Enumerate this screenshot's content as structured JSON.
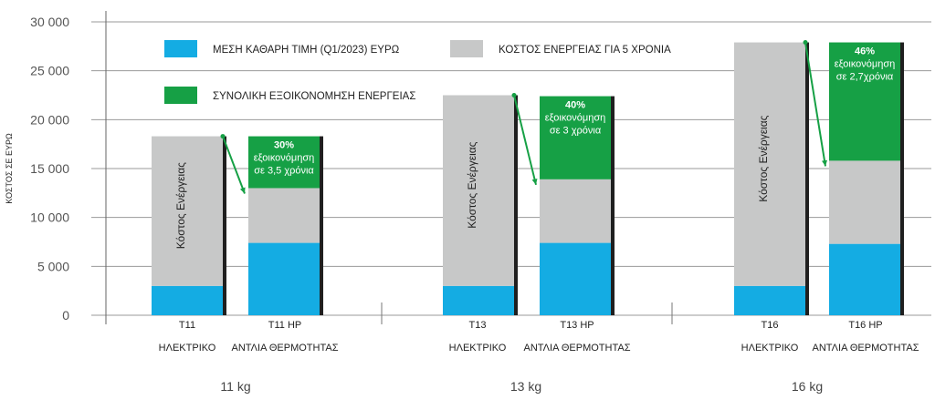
{
  "chart_data": {
    "type": "bar",
    "stacked": true,
    "ylabel": "ΚΟΣΤΟΣ ΣΕ ΕΥΡΩ",
    "ylim": [
      0,
      30000
    ],
    "yticks": [
      {
        "value": 0,
        "label": "0"
      },
      {
        "value": 5000,
        "label": "5 000"
      },
      {
        "value": 10000,
        "label": "10 000"
      },
      {
        "value": 15000,
        "label": "15 000"
      },
      {
        "value": 20000,
        "label": "20 000"
      },
      {
        "value": 25000,
        "label": "25 000"
      },
      {
        "value": 30000,
        "label": "30 000"
      }
    ],
    "grid": true,
    "legend": [
      {
        "key": "price",
        "label": "ΜΕΣΗ ΚΑΘΑΡΗ ΤΙΜΗ (Q1/2023) ΕΥΡΩ",
        "color": "#14ACE3"
      },
      {
        "key": "energy",
        "label": "ΚΟΣΤΟΣ  ΕΝΕΡΓΕΙΑΣ ΓΙΑ 5 ΧΡΟΝΙΑ",
        "color": "#C7C8C8"
      },
      {
        "key": "saving",
        "label": "ΣΥΝΟΛΙΚΗ  ΕΞΟΙΚΟΝΟΜΗΣΗ ΕΝΕΡΓΕΙΑΣ",
        "color": "#16A045"
      }
    ],
    "groups": [
      {
        "weight": "11 kg",
        "bars": [
          {
            "model": "T11",
            "type": "ΗΛΕΚΤΡΙΚΟ",
            "price": 3000,
            "energy": 15300,
            "saving": 0,
            "inner_label": "Κόστος Ενέργειας"
          },
          {
            "model": "T11  HP",
            "type": "ΑΝΤΛΙΑ ΘΕΡΜΟΤΗΤΑΣ",
            "price": 7400,
            "energy": 5600,
            "saving": 5300,
            "saving_pct": "30%",
            "saving_line1": "εξοικονόμηση",
            "saving_line2": "σε 3,5 χρόνια"
          }
        ]
      },
      {
        "weight": "13 kg",
        "bars": [
          {
            "model": "T13",
            "type": "ΗΛΕΚΤΡΙΚΟ",
            "price": 3000,
            "energy": 19500,
            "saving": 0,
            "inner_label": "Κόστος Ενέργειας"
          },
          {
            "model": "T13  HP",
            "type": "ΑΝΤΛΙΑ ΘΕΡΜΟΤΗΤΑΣ",
            "price": 7400,
            "energy": 6500,
            "saving": 8500,
            "saving_pct": "40%",
            "saving_line1": "εξοικονόμηση",
            "saving_line2": "σε 3 χρόνια"
          }
        ]
      },
      {
        "weight": "16 kg",
        "bars": [
          {
            "model": "T16",
            "type": "ΗΛΕΚΤΡΙΚΟ",
            "price": 3000,
            "energy": 24900,
            "saving": 0,
            "inner_label": "Κόστος Ενέργειας"
          },
          {
            "model": "T16  HP",
            "type": "ΑΝΤΛΙΑ ΘΕΡΜΟΤΗΤΑΣ",
            "price": 7300,
            "energy": 8500,
            "saving": 12100,
            "saving_pct": "46%",
            "saving_line1": "εξοικονόμηση",
            "saving_line2": "σε 2,7χρόνια"
          }
        ]
      }
    ]
  }
}
